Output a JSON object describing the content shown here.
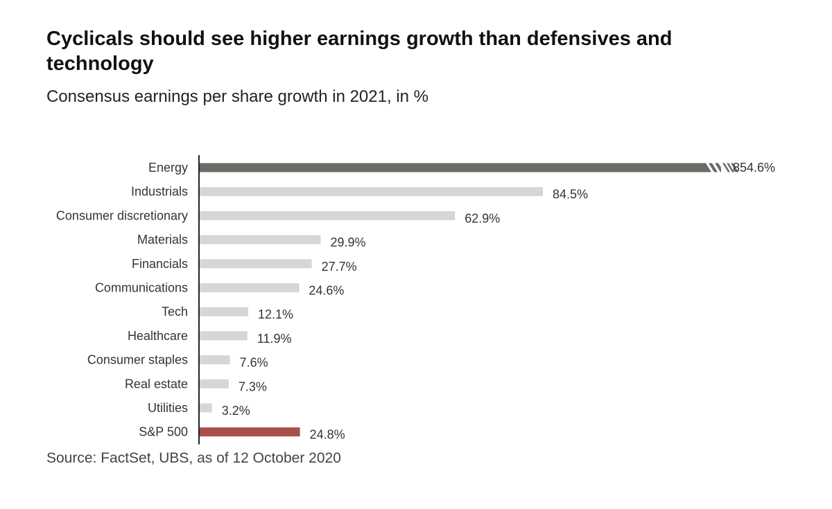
{
  "title": "Cyclicals should see higher earnings growth than defensives and technology",
  "subtitle": "Consensus earnings per share growth in 2021, in %",
  "source": "Source: FactSet, UBS, as of 12 October 2020",
  "colors": {
    "highlight": "#6b6a67",
    "default": "#d6d6d6",
    "benchmark": "#a84f4a",
    "axis": "#222222"
  },
  "chart_data": {
    "type": "bar",
    "orientation": "horizontal",
    "axis_break": "Energy bar truncated (value exceeds plotted scale)",
    "categories": [
      "Energy",
      "Industrials",
      "Consumer discretionary",
      "Materials",
      "Financials",
      "Communications",
      "Tech",
      "Healthcare",
      "Consumer staples",
      "Real estate",
      "Utilities",
      "S&P 500"
    ],
    "values": [
      854.6,
      84.5,
      62.9,
      29.9,
      27.7,
      24.6,
      12.1,
      11.9,
      7.6,
      7.3,
      3.2,
      24.8
    ],
    "value_labels": [
      "854.6%",
      "84.5%",
      "62.9%",
      "29.9%",
      "27.7%",
      "24.6%",
      "12.1%",
      "11.9%",
      "7.6%",
      "7.3%",
      "3.2%",
      "24.8%"
    ],
    "bar_styles": [
      "highlight",
      "default",
      "default",
      "default",
      "default",
      "default",
      "default",
      "default",
      "default",
      "default",
      "default",
      "benchmark"
    ],
    "grid": false,
    "legend": "none"
  }
}
